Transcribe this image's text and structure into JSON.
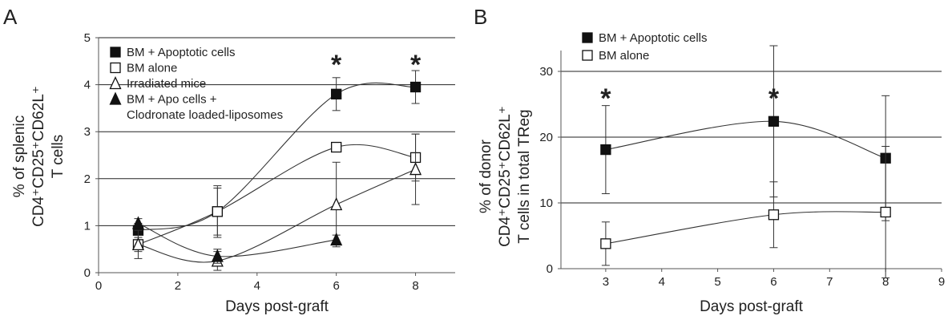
{
  "panels": {
    "a": "A",
    "b": "B"
  },
  "chart_data": [
    {
      "type": "line",
      "xlabel": "Days post-graft",
      "ylabel_lines": [
        "% of splenic",
        "CD4⁺CD25⁺CD62L⁺",
        "T cells"
      ],
      "xlim": [
        0,
        9
      ],
      "ylim": [
        0,
        5
      ],
      "xticks": [
        "0",
        "2",
        "4",
        "6",
        "8"
      ],
      "yticks": [
        "0",
        "1",
        "2",
        "3",
        "4",
        "5"
      ],
      "grid": "horizontal",
      "legend_position": "top-left",
      "significance_markers": [
        {
          "x": 6,
          "label": "*"
        },
        {
          "x": 8,
          "label": "*"
        }
      ],
      "series": [
        {
          "name": "BM + Apoptotic cells",
          "marker": "filled-square",
          "x": [
            1,
            3,
            6,
            8
          ],
          "values": [
            0.9,
            1.3,
            3.8,
            3.95
          ],
          "errors": [
            0.15,
            0.55,
            0.35,
            0.35
          ]
        },
        {
          "name": "BM alone",
          "marker": "open-square",
          "x": [
            1,
            3,
            6,
            8
          ],
          "values": [
            0.6,
            1.3,
            2.67,
            2.45
          ],
          "errors": [
            0.15,
            0.5,
            0.05,
            0.5
          ]
        },
        {
          "name": "Irradiated mice",
          "marker": "open-triangle",
          "x": [
            1,
            3,
            6,
            8
          ],
          "values": [
            0.6,
            0.25,
            1.45,
            2.2
          ],
          "errors": [
            0.3,
            0.2,
            0.9,
            0.75
          ]
        },
        {
          "name_lines": [
            "BM + Apo cells +",
            "Clodronate loaded-liposomes"
          ],
          "marker": "filled-triangle",
          "x": [
            1,
            3,
            6
          ],
          "values": [
            1.05,
            0.35,
            0.7
          ],
          "errors": [
            0.1,
            0.15,
            0.1
          ]
        }
      ]
    },
    {
      "type": "line",
      "xlabel": "Days post-graft",
      "ylabel_lines": [
        "% of donor",
        "CD4⁺CD25⁺CD62L⁺",
        "T cells in total TReg"
      ],
      "xlim": [
        2.2,
        9
      ],
      "ylim": [
        0,
        35
      ],
      "xticks": [
        "3",
        "4",
        "5",
        "6",
        "7",
        "8",
        "9"
      ],
      "yticks": [
        "0",
        "10",
        "20",
        "30"
      ],
      "grid": "horizontal",
      "legend_position": "top-left",
      "significance_markers": [
        {
          "x": 3,
          "label": "*"
        },
        {
          "x": 6,
          "label": "*"
        }
      ],
      "series": [
        {
          "name": "BM + Apoptotic cells",
          "marker": "filled-square",
          "x": [
            3,
            6,
            8
          ],
          "values": [
            18.1,
            22.4,
            16.8
          ],
          "errors": [
            6.7,
            11.5,
            9.5
          ]
        },
        {
          "name": "BM alone",
          "marker": "open-square",
          "x": [
            3,
            6,
            8
          ],
          "values": [
            3.8,
            8.2,
            8.6
          ],
          "errors": [
            3.3,
            5.0,
            10.0
          ]
        }
      ]
    }
  ]
}
